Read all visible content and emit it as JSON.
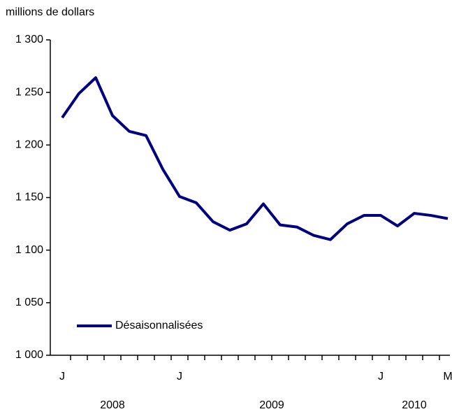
{
  "chart_data": {
    "type": "line",
    "y_label": "millions de dollars",
    "categories": [
      "J",
      null,
      null,
      null,
      null,
      null,
      null,
      "J",
      null,
      null,
      null,
      null,
      null,
      null,
      null,
      null,
      null,
      null,
      null,
      "J",
      null,
      null,
      null,
      "M"
    ],
    "year_labels": [
      "2008",
      "2009",
      "2010"
    ],
    "series": [
      {
        "name": "Désaisonnalisées",
        "color": "#000080",
        "values": [
          1226,
          1249,
          1264,
          1228,
          1213,
          1209,
          1177,
          1151,
          1145,
          1127,
          1119,
          1125,
          1144,
          1124,
          1122,
          1114,
          1110,
          1125,
          1133,
          1133,
          1123,
          1135,
          1133,
          1130
        ]
      }
    ],
    "ylim": [
      1000,
      1300
    ],
    "yticks": [
      {
        "value": 1000,
        "label": "1 000"
      },
      {
        "value": 1050,
        "label": "1 050"
      },
      {
        "value": 1100,
        "label": "1 100"
      },
      {
        "value": 1150,
        "label": "1 150"
      },
      {
        "value": 1200,
        "label": "1 200"
      },
      {
        "value": 1250,
        "label": "1 250"
      },
      {
        "value": 1300,
        "label": "1 300"
      }
    ],
    "grid": false,
    "legend": "lower left"
  }
}
